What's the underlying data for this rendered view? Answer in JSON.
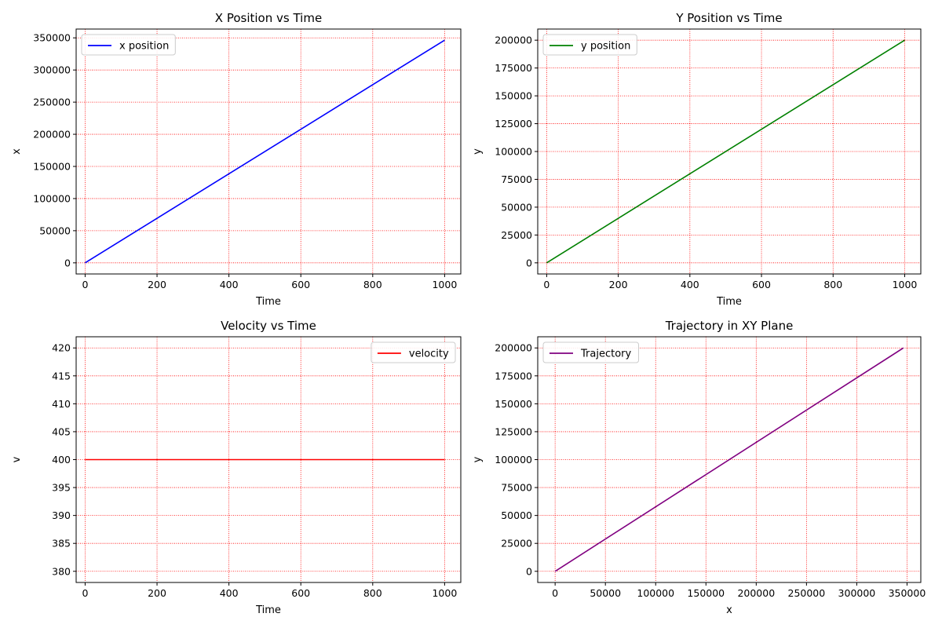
{
  "chart_data": [
    {
      "type": "line",
      "title": "X Position vs Time",
      "xlabel": "Time",
      "ylabel": "x",
      "xlim": [
        -25,
        1045
      ],
      "ylim": [
        -17300,
        363700
      ],
      "xticks": [
        0,
        200,
        400,
        600,
        800,
        1000
      ],
      "yticks": [
        0,
        50000,
        100000,
        150000,
        200000,
        250000,
        300000,
        350000
      ],
      "grid": true,
      "grid_color": "#ff0000",
      "legend_position": "upper-left",
      "series": [
        {
          "name": "x position",
          "color": "#0000ff",
          "x": [
            0,
            1000
          ],
          "y": [
            0,
            346400
          ]
        }
      ]
    },
    {
      "type": "line",
      "title": "Y Position vs Time",
      "xlabel": "Time",
      "ylabel": "y",
      "xlim": [
        -25,
        1045
      ],
      "ylim": [
        -10000,
        210000
      ],
      "xticks": [
        0,
        200,
        400,
        600,
        800,
        1000
      ],
      "yticks": [
        0,
        25000,
        50000,
        75000,
        100000,
        125000,
        150000,
        175000,
        200000
      ],
      "grid": true,
      "grid_color": "#ff0000",
      "legend_position": "upper-left",
      "series": [
        {
          "name": "y position",
          "color": "#008000",
          "x": [
            0,
            1000
          ],
          "y": [
            0,
            200000
          ]
        }
      ]
    },
    {
      "type": "line",
      "title": "Velocity vs Time",
      "xlabel": "Time",
      "ylabel": "v",
      "xlim": [
        -25,
        1045
      ],
      "ylim": [
        378,
        422
      ],
      "xticks": [
        0,
        200,
        400,
        600,
        800,
        1000
      ],
      "yticks": [
        380,
        385,
        390,
        395,
        400,
        405,
        410,
        415,
        420
      ],
      "grid": true,
      "grid_color": "#ff0000",
      "legend_position": "upper-right",
      "series": [
        {
          "name": "velocity",
          "color": "#ff0000",
          "x": [
            0,
            1000
          ],
          "y": [
            400,
            400
          ]
        }
      ]
    },
    {
      "type": "line",
      "title": "Trajectory in XY Plane",
      "xlabel": "x",
      "ylabel": "y",
      "xlim": [
        -17300,
        363700
      ],
      "ylim": [
        -10000,
        210000
      ],
      "xticks": [
        0,
        50000,
        100000,
        150000,
        200000,
        250000,
        300000,
        350000
      ],
      "yticks": [
        0,
        25000,
        50000,
        75000,
        100000,
        125000,
        150000,
        175000,
        200000
      ],
      "grid": true,
      "grid_color": "#ff0000",
      "legend_position": "upper-left",
      "series": [
        {
          "name": "Trajectory",
          "color": "#800080",
          "x": [
            0,
            346400
          ],
          "y": [
            0,
            200000
          ]
        }
      ]
    }
  ]
}
